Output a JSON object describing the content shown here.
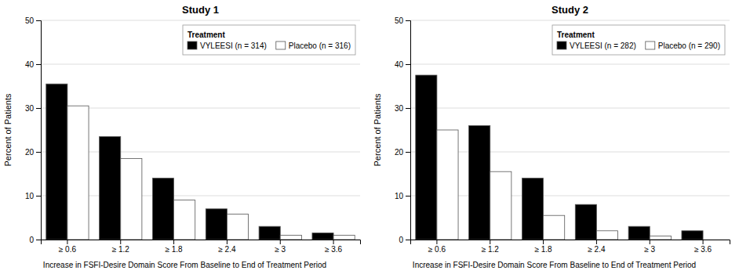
{
  "chart_data": [
    {
      "type": "bar",
      "title": "Study 1",
      "categories": [
        "≥ 0.6",
        "≥ 1.2",
        "≥ 1.8",
        "≥ 2.4",
        "≥ 3",
        "≥ 3.6"
      ],
      "series": [
        {
          "name": "VYLEESI (n = 314)",
          "color": "#000000",
          "values": [
            35.5,
            23.5,
            14.0,
            7.0,
            3.0,
            1.5
          ]
        },
        {
          "name": "Placebo (n = 316)",
          "color": "#ffffff",
          "values": [
            30.5,
            18.5,
            9.0,
            5.8,
            1.0,
            1.0
          ]
        }
      ],
      "xlabel": "Increase in FSFI-Desire Domain Score From Baseline to End of Treatment Period",
      "ylabel": "Percent of Patients",
      "legend_title": "Treatment",
      "ylim": [
        0,
        50
      ],
      "yticks": [
        0,
        10,
        20,
        30,
        40,
        50
      ],
      "grid": true,
      "legend": "upper right"
    },
    {
      "type": "bar",
      "title": "Study 2",
      "categories": [
        "≥ 0.6",
        "≥ 1.2",
        "≥ 1.8",
        "≥ 2.4",
        "≥ 3",
        "≥ 3.6"
      ],
      "series": [
        {
          "name": "VYLEESI (n = 282)",
          "color": "#000000",
          "values": [
            37.5,
            26.0,
            14.0,
            8.0,
            3.0,
            2.0
          ]
        },
        {
          "name": "Placebo (n = 290)",
          "color": "#ffffff",
          "values": [
            25.0,
            15.5,
            5.5,
            2.0,
            0.8,
            0.0
          ]
        }
      ],
      "xlabel": "Increase in FSFI-Desire Domain Score From Baseline to End of Treatment Period",
      "ylabel": "Percent of Patients",
      "legend_title": "Treatment",
      "ylim": [
        0,
        50
      ],
      "yticks": [
        0,
        10,
        20,
        30,
        40,
        50
      ],
      "grid": true,
      "legend": "upper right"
    }
  ]
}
